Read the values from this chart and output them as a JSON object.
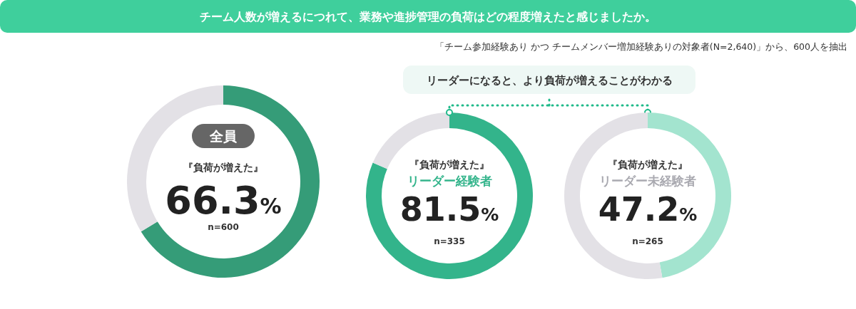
{
  "chart_data": [
    {
      "type": "donut",
      "title": "チーム人数が増えるにつれて、業務や進捗管理の負荷はどの程度増えたと感じましたか。",
      "subtitle": "全員",
      "categories": [
        "『負荷が増えた』",
        null
      ],
      "values": [
        66.3,
        33.7
      ],
      "colors": [
        "#359c78",
        "#e3e1e6"
      ],
      "value_labels": [
        "66.3%",
        null
      ],
      "annotations": [
        "「チーム参加経験あり かつ チームメンバー増加経験ありの対象者(N=2,640)」から、600人を抽出",
        "n=600"
      ]
    },
    {
      "type": "donut",
      "subtitle": "リーダー経験者",
      "categories": [
        "『負荷が増えた』",
        null
      ],
      "values": [
        81.5,
        18.5
      ],
      "colors": [
        "#33b48b",
        "#e3e1e6"
      ],
      "value_labels": [
        "81.5%",
        null
      ],
      "annotations": [
        "リーダーになると、より負荷が増えることがわかる",
        "n=335"
      ]
    },
    {
      "type": "donut",
      "subtitle": "リーダー未経験者",
      "categories": [
        "『負荷が増えた』",
        null
      ],
      "values": [
        47.2,
        52.8
      ],
      "colors": [
        "#a3e4cf",
        "#e3e1e6"
      ],
      "value_labels": [
        "47.2%",
        null
      ],
      "annotations": [
        "n=265"
      ]
    }
  ]
}
